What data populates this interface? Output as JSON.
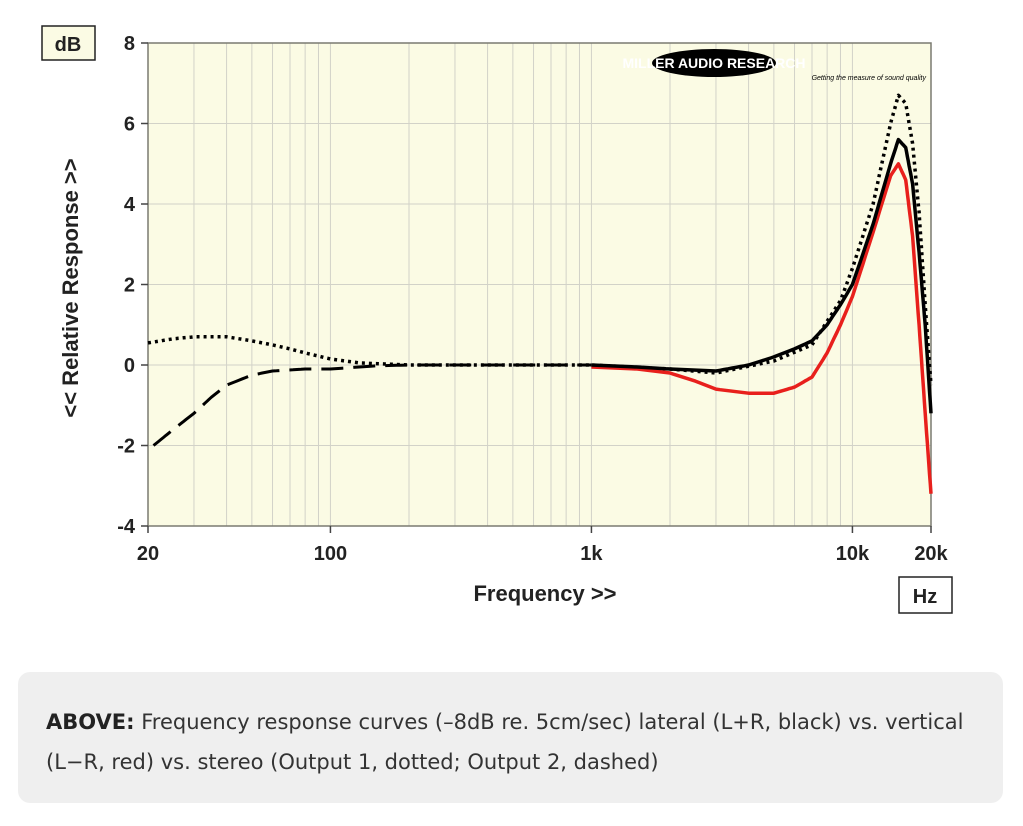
{
  "chart_data": {
    "type": "line",
    "xscale": "log",
    "xlim": [
      20,
      20000
    ],
    "ylim": [
      -4,
      8
    ],
    "yticks": [
      8,
      6,
      4,
      2,
      0,
      -2,
      -4
    ],
    "ytick_labels": [
      "8",
      "6",
      "4",
      "2",
      "0",
      "-2",
      "-4"
    ],
    "xticks": [
      20,
      100,
      1000,
      10000,
      20000
    ],
    "xtick_labels": [
      "20",
      "100",
      "1k",
      "10k",
      "20k"
    ],
    "xlabel": "Frequency >>",
    "ylabel": "<< Relative Response >>",
    "y_unit": "dB",
    "x_unit": "Hz",
    "grid": true,
    "watermark": {
      "main": "MILLER AUDIO RESEARCH",
      "tagline": "Getting the measure of sound quality"
    },
    "colors": {
      "background": "#fbfbe4",
      "grid": "#d2d2c8",
      "lateral": "#000000",
      "vertical": "#e8201c",
      "output1": "#000000",
      "output2": "#000000"
    },
    "series": [
      {
        "name": "lateral (L+R, black)",
        "style": "solid",
        "color": "#000000",
        "x": [
          1000,
          1500,
          2000,
          3000,
          4000,
          5000,
          6000,
          7000,
          8000,
          9000,
          10000,
          12000,
          14000,
          15000,
          16000,
          17000,
          18000,
          19000,
          20000
        ],
        "y": [
          0,
          -0.05,
          -0.1,
          -0.15,
          0,
          0.2,
          0.4,
          0.6,
          1.0,
          1.5,
          2.0,
          3.5,
          5.0,
          5.6,
          5.4,
          4.5,
          2.8,
          1.0,
          -1.2
        ]
      },
      {
        "name": "vertical (L−R, red)",
        "style": "solid",
        "color": "#e8201c",
        "x": [
          1000,
          1500,
          2000,
          2500,
          3000,
          4000,
          5000,
          6000,
          7000,
          8000,
          9000,
          10000,
          12000,
          14000,
          15000,
          16000,
          17000,
          18000,
          19000,
          20000
        ],
        "y": [
          -0.05,
          -0.1,
          -0.2,
          -0.4,
          -0.6,
          -0.7,
          -0.7,
          -0.55,
          -0.3,
          0.3,
          1.0,
          1.7,
          3.3,
          4.7,
          5.0,
          4.6,
          3.2,
          1.0,
          -1.2,
          -3.2
        ]
      },
      {
        "name": "stereo (Output 1, dotted)",
        "style": "dotted",
        "color": "#000000",
        "x": [
          20,
          25,
          30,
          40,
          50,
          60,
          70,
          80,
          100,
          130,
          200,
          500,
          1000,
          2000,
          3000,
          5000,
          7000,
          9000,
          10000,
          12000,
          14000,
          15000,
          16000,
          17000,
          18000,
          19000,
          20000
        ],
        "y": [
          0.55,
          0.65,
          0.7,
          0.7,
          0.6,
          0.5,
          0.4,
          0.3,
          0.15,
          0.05,
          0,
          0,
          0,
          -0.1,
          -0.2,
          0.1,
          0.5,
          1.6,
          2.4,
          4.0,
          6.0,
          6.7,
          6.5,
          5.5,
          3.8,
          1.5,
          -0.5
        ]
      },
      {
        "name": "stereo (Output 2, dashed)",
        "style": "dashed",
        "color": "#000000",
        "x": [
          21,
          25,
          30,
          35,
          40,
          50,
          60,
          80,
          100,
          150,
          200,
          500,
          1000
        ],
        "y": [
          -2.0,
          -1.6,
          -1.2,
          -0.8,
          -0.5,
          -0.25,
          -0.15,
          -0.1,
          -0.1,
          -0.02,
          0,
          0,
          0
        ]
      }
    ]
  },
  "caption": {
    "label": "ABOVE:",
    "text": " Frequency response curves (–8dB re. 5cm/sec) lateral (L+R, black) vs. vertical (L−R, red) vs. stereo (Output 1, dotted; Output 2, dashed)"
  }
}
